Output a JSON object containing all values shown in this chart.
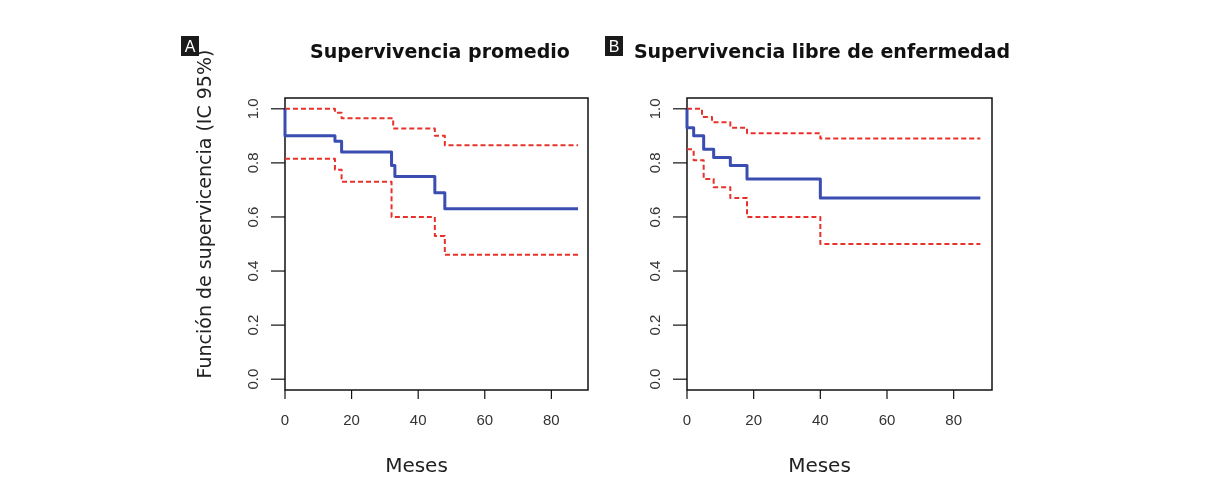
{
  "chart_data": [
    {
      "type": "step",
      "title": "Supervivencia promedio",
      "xlabel": "Meses",
      "ylabel": "Función de supervicencia (IC 95%)",
      "annotations": [
        "A"
      ],
      "xlim": [
        0,
        91
      ],
      "xticks": [
        0,
        20,
        40,
        60,
        80
      ],
      "ylim": [
        -0.04,
        1.04
      ],
      "yticks": [
        {
          "value": 0,
          "label": "0.0"
        },
        {
          "value": 0.2,
          "label": "0.2"
        },
        {
          "value": 0.4,
          "label": "0.4"
        },
        {
          "value": 0.6,
          "label": "0.6"
        },
        {
          "value": 0.8,
          "label": "0.8"
        },
        {
          "value": 1,
          "label": "1.0"
        }
      ],
      "grid": false,
      "series": [
        {
          "color": "#e8312a",
          "line_style": "dashed",
          "x": [
            0,
            15,
            17,
            32.5,
            45,
            48,
            88
          ],
          "values": [
            1.0,
            0.985,
            0.965,
            0.927,
            0.9,
            0.865,
            0.865
          ]
        },
        {
          "color": "#e8312a",
          "line_style": "dashed",
          "x": [
            0,
            15,
            17,
            32,
            45,
            48,
            88
          ],
          "values": [
            0.815,
            0.775,
            0.73,
            0.6,
            0.53,
            0.46,
            0.46
          ]
        },
        {
          "color": "#3a4db0",
          "line_style": "solid",
          "x": [
            0,
            0,
            15,
            17,
            32,
            33,
            45,
            48,
            88
          ],
          "values": [
            1.0,
            0.9,
            0.88,
            0.84,
            0.79,
            0.75,
            0.69,
            0.63,
            0.63
          ]
        }
      ]
    },
    {
      "type": "step",
      "title": "Supervivencia libre de enfermedad",
      "xlabel": "Meses",
      "annotations": [
        "B"
      ],
      "xlim": [
        0,
        91.5
      ],
      "xticks": [
        0,
        20,
        40,
        60,
        80
      ],
      "ylim": [
        -0.04,
        1.04
      ],
      "yticks": [
        {
          "value": 0,
          "label": "0.0"
        },
        {
          "value": 0.2,
          "label": "0.2"
        },
        {
          "value": 0.4,
          "label": "0.4"
        },
        {
          "value": 0.6,
          "label": "0.6"
        },
        {
          "value": 0.8,
          "label": "0.8"
        },
        {
          "value": 1,
          "label": "1.0"
        }
      ],
      "grid": false,
      "series": [
        {
          "color": "#e8312a",
          "line_style": "dashed",
          "x": [
            0,
            4.5,
            7.5,
            13,
            18,
            40,
            88
          ],
          "values": [
            1.0,
            0.97,
            0.95,
            0.93,
            0.91,
            0.89,
            0.89
          ]
        },
        {
          "color": "#e8312a",
          "line_style": "dashed",
          "x": [
            0,
            2,
            5,
            8,
            13,
            18,
            40,
            88
          ],
          "values": [
            0.85,
            0.81,
            0.74,
            0.71,
            0.67,
            0.6,
            0.5,
            0.5
          ]
        },
        {
          "color": "#3a4db0",
          "line_style": "solid",
          "x": [
            0,
            0,
            2,
            5,
            8,
            13,
            18,
            40,
            88
          ],
          "values": [
            1.0,
            0.93,
            0.9,
            0.85,
            0.82,
            0.79,
            0.74,
            0.67,
            0.67
          ]
        }
      ]
    }
  ]
}
